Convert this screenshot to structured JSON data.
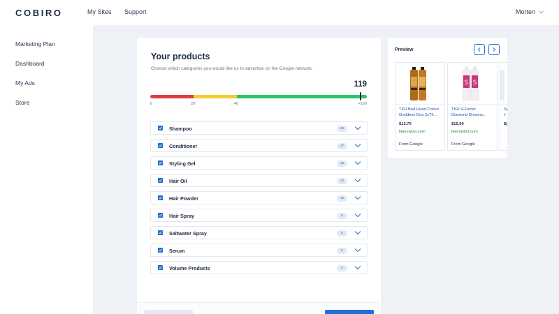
{
  "header": {
    "logo": "COBIRO",
    "nav": [
      "My Sites",
      "Support"
    ],
    "user": "Morten"
  },
  "sidebar": {
    "items": [
      "Marketing Plan",
      "Dashboard",
      "My Ads",
      "Store"
    ]
  },
  "products": {
    "title": "Your products",
    "subtitle": "Choose which categories you would like us to advertise on the Google network.",
    "score": "119",
    "scale": {
      "max_value": 100,
      "marker_value": 97,
      "segments": [
        {
          "from": 0,
          "to": 20,
          "color": "#e33b41"
        },
        {
          "from": 20,
          "to": 40,
          "color": "#f5ce2f"
        },
        {
          "from": 40,
          "to": 100,
          "color": "#2bc46a"
        }
      ],
      "ticks": [
        "0",
        "20",
        "40",
        "+100"
      ]
    },
    "categories": [
      {
        "label": "Shampoo",
        "count": "35"
      },
      {
        "label": "Conditioner",
        "count": "27"
      },
      {
        "label": "Styling Gel",
        "count": "16"
      },
      {
        "label": "Hair Oil",
        "count": "14"
      },
      {
        "label": "Hair Powder",
        "count": "10"
      },
      {
        "label": "Hair Spray",
        "count": "5"
      },
      {
        "label": "Saltwater Spray",
        "count": "5"
      },
      {
        "label": "Serum",
        "count": "5"
      },
      {
        "label": "Volume Products",
        "count": "5"
      }
    ]
  },
  "preview": {
    "title": "Preview",
    "cards": [
      {
        "name_line1": "TIGI Bed Head Colour",
        "name_line2": "Goddess Duo 2x75...",
        "price": "$12.70",
        "store": "Hairstylist.com",
        "source": "From Google"
      },
      {
        "name_line1": "TIGI S-Factor",
        "name_line2": "Diamond Dreams...",
        "price": "$15.50",
        "store": "Hairstylist.com",
        "source": "From Google"
      },
      {
        "name_line1": "Sp",
        "name_line2": "t-",
        "price": "$(",
        "store": "",
        "source": ""
      }
    ]
  },
  "colors": {
    "accent": "#1f6fd6",
    "text": "#1f2d42",
    "link": "#1f4fb8",
    "store": "#18903c",
    "badge_bg": "#dfeafa"
  },
  "icons": [
    "chevron-down-icon",
    "checkbox-checked-icon",
    "arrow-left-icon",
    "arrow-right-icon"
  ]
}
